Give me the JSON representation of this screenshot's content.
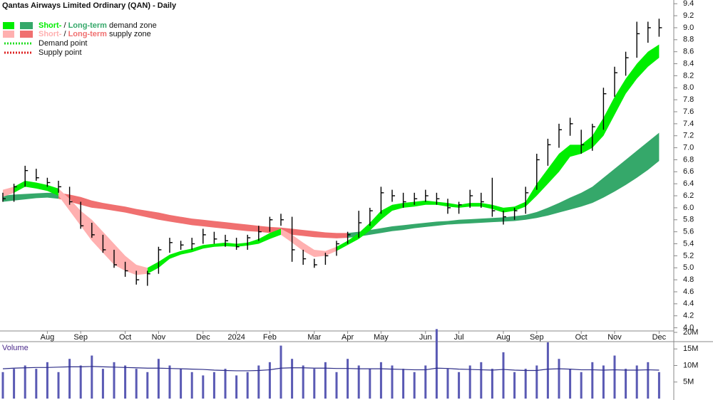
{
  "chart_data": {
    "type": "candlestick",
    "title": "Qantas Airways Limited Ordinary (QAN) - Daily",
    "categories": [
      null,
      null,
      null,
      null,
      "Aug",
      null,
      null,
      "Sep",
      null,
      null,
      null,
      "Oct",
      null,
      null,
      "Nov",
      null,
      null,
      null,
      "Dec",
      null,
      null,
      "2024",
      null,
      null,
      "Feb",
      null,
      null,
      null,
      "Mar",
      null,
      null,
      "Apr",
      null,
      null,
      "May",
      null,
      null,
      null,
      "Jun",
      null,
      null,
      "Jul",
      null,
      null,
      null,
      "Aug",
      null,
      null,
      "Sep",
      null,
      null,
      null,
      "Oct",
      null,
      null,
      "Nov",
      null,
      null,
      null,
      "Dec"
    ],
    "high": [
      6.25,
      6.4,
      6.7,
      6.65,
      6.5,
      6.45,
      6.35,
      6.1,
      5.75,
      5.55,
      5.3,
      5.1,
      4.95,
      4.95,
      5.35,
      5.5,
      5.45,
      5.5,
      5.65,
      5.6,
      5.55,
      5.5,
      5.55,
      5.7,
      5.85,
      5.9,
      5.85,
      5.3,
      5.15,
      5.25,
      5.45,
      5.6,
      5.95,
      6.0,
      6.35,
      6.3,
      6.25,
      6.25,
      6.3,
      6.25,
      6.15,
      6.1,
      6.3,
      6.25,
      6.5,
      5.95,
      6.0,
      6.35,
      6.9,
      7.15,
      7.4,
      7.5,
      7.3,
      7.4,
      8.0,
      8.35,
      8.6,
      9.1,
      9.1,
      9.15
    ],
    "low": [
      6.1,
      6.1,
      6.35,
      6.45,
      6.35,
      6.25,
      6.05,
      5.65,
      5.5,
      5.25,
      5.0,
      4.85,
      4.72,
      4.7,
      4.9,
      5.25,
      5.3,
      5.3,
      5.4,
      5.4,
      5.35,
      5.3,
      5.3,
      5.45,
      5.6,
      5.7,
      5.1,
      5.05,
      5.0,
      5.05,
      5.2,
      5.4,
      5.5,
      5.7,
      5.9,
      6.1,
      6.0,
      6.05,
      6.1,
      6.05,
      5.9,
      5.9,
      6.0,
      6.0,
      5.85,
      5.72,
      5.8,
      5.9,
      6.3,
      6.7,
      7.0,
      7.2,
      6.9,
      6.95,
      7.3,
      7.85,
      8.2,
      8.5,
      8.75,
      8.85
    ],
    "close": [
      6.15,
      6.35,
      6.62,
      6.5,
      6.42,
      6.35,
      6.1,
      5.7,
      5.55,
      5.3,
      5.05,
      4.95,
      4.8,
      4.9,
      5.3,
      5.42,
      5.38,
      5.4,
      5.55,
      5.48,
      5.45,
      5.35,
      5.5,
      5.6,
      5.8,
      5.8,
      5.3,
      5.15,
      5.05,
      5.2,
      5.4,
      5.55,
      5.75,
      5.95,
      6.25,
      6.2,
      6.1,
      6.15,
      6.2,
      6.15,
      6.0,
      6.05,
      6.2,
      6.1,
      5.95,
      5.85,
      5.95,
      6.25,
      6.8,
      7.05,
      7.3,
      7.4,
      7.05,
      7.35,
      7.9,
      8.25,
      8.5,
      8.9,
      9.0,
      9.0
    ],
    "color": "#000000",
    "zones": [
      {
        "name": "Short-term demand zone",
        "color": "#00ee00",
        "upper": [
          null,
          6.35,
          6.45,
          6.42,
          6.38,
          6.32,
          null,
          null,
          null,
          null,
          null,
          null,
          null,
          5.0,
          5.1,
          5.22,
          5.28,
          5.32,
          5.38,
          5.4,
          5.42,
          5.4,
          5.42,
          5.48,
          5.58,
          5.65,
          null,
          null,
          null,
          null,
          5.35,
          5.45,
          5.58,
          5.75,
          5.95,
          6.05,
          6.08,
          6.1,
          6.12,
          6.1,
          6.08,
          6.05,
          6.08,
          6.08,
          6.05,
          6.0,
          6.02,
          6.1,
          6.4,
          6.65,
          6.9,
          7.05,
          7.05,
          7.2,
          7.5,
          7.85,
          8.15,
          8.4,
          8.6,
          8.72
        ],
        "lower": [
          null,
          6.25,
          6.35,
          6.32,
          6.28,
          6.2,
          null,
          null,
          null,
          null,
          null,
          null,
          null,
          4.9,
          5.0,
          5.15,
          5.22,
          5.26,
          5.32,
          5.35,
          5.36,
          5.35,
          5.37,
          5.4,
          5.48,
          5.55,
          null,
          null,
          null,
          null,
          5.28,
          5.38,
          5.48,
          5.62,
          5.8,
          5.95,
          6.0,
          6.02,
          6.05,
          6.05,
          6.02,
          6.0,
          6.02,
          6.02,
          5.98,
          5.92,
          5.95,
          6.02,
          6.2,
          6.4,
          6.6,
          6.85,
          6.9,
          7.0,
          7.2,
          7.55,
          7.9,
          8.15,
          8.35,
          8.5
        ]
      },
      {
        "name": "Short-term supply zone",
        "color": "#ffb0b0",
        "upper": [
          6.3,
          6.35,
          null,
          null,
          null,
          6.32,
          6.15,
          5.95,
          5.8,
          5.6,
          5.4,
          5.2,
          5.05,
          5.0,
          null,
          null,
          null,
          null,
          null,
          null,
          null,
          null,
          null,
          null,
          null,
          5.65,
          5.55,
          5.42,
          5.3,
          5.28,
          5.35,
          null,
          null,
          null,
          null,
          null,
          null,
          null,
          null,
          null,
          null,
          null,
          null,
          null,
          null,
          null,
          null,
          null,
          null,
          null,
          null,
          null,
          null,
          null,
          null,
          null,
          null,
          null,
          null,
          null
        ],
        "lower": [
          6.18,
          6.25,
          null,
          null,
          null,
          6.2,
          5.95,
          5.7,
          5.45,
          5.25,
          5.05,
          4.95,
          4.88,
          4.9,
          null,
          null,
          null,
          null,
          null,
          null,
          null,
          null,
          null,
          null,
          null,
          5.55,
          5.42,
          5.28,
          5.18,
          5.2,
          5.28,
          null,
          null,
          null,
          null,
          null,
          null,
          null,
          null,
          null,
          null,
          null,
          null,
          null,
          null,
          null,
          null,
          null,
          null,
          null,
          null,
          null,
          null,
          null,
          null,
          null,
          null,
          null,
          null,
          null
        ]
      },
      {
        "name": "Long-term demand zone",
        "color": "#35a86a",
        "upper": [
          6.2,
          6.22,
          6.23,
          6.24,
          6.25,
          6.25,
          null,
          null,
          null,
          null,
          null,
          null,
          null,
          null,
          null,
          null,
          null,
          null,
          null,
          null,
          null,
          null,
          null,
          null,
          null,
          null,
          null,
          null,
          null,
          null,
          null,
          5.58,
          5.6,
          5.63,
          5.66,
          5.69,
          5.71,
          5.73,
          5.75,
          5.77,
          5.78,
          5.8,
          5.81,
          5.82,
          5.83,
          5.84,
          5.86,
          5.88,
          5.93,
          6.0,
          6.08,
          6.17,
          6.25,
          6.35,
          6.5,
          6.65,
          6.8,
          6.95,
          7.1,
          7.25
        ],
        "lower": [
          6.1,
          6.12,
          6.14,
          6.16,
          6.17,
          6.15,
          null,
          null,
          null,
          null,
          null,
          null,
          null,
          null,
          null,
          null,
          null,
          null,
          null,
          null,
          null,
          null,
          null,
          null,
          null,
          null,
          null,
          null,
          null,
          null,
          null,
          5.5,
          5.52,
          5.55,
          5.58,
          5.61,
          5.63,
          5.66,
          5.68,
          5.7,
          5.72,
          5.73,
          5.74,
          5.75,
          5.76,
          5.77,
          5.78,
          5.8,
          5.83,
          5.87,
          5.92,
          5.97,
          6.02,
          6.08,
          6.17,
          6.27,
          6.38,
          6.5,
          6.63,
          6.78
        ]
      },
      {
        "name": "Long-term supply zone",
        "color": "#f07070",
        "upper": [
          null,
          null,
          null,
          null,
          null,
          6.25,
          6.22,
          6.18,
          6.12,
          6.08,
          6.05,
          6.02,
          5.98,
          5.95,
          5.92,
          5.88,
          5.85,
          5.82,
          5.8,
          5.78,
          5.76,
          5.74,
          5.72,
          5.7,
          5.68,
          5.67,
          5.65,
          5.63,
          5.61,
          5.59,
          5.58,
          5.58,
          null,
          null,
          null,
          null,
          null,
          null,
          null,
          null,
          null,
          null,
          null,
          null,
          null,
          null,
          null,
          null,
          null,
          null,
          null,
          null,
          null,
          null,
          null,
          null,
          null,
          null,
          null,
          null
        ],
        "lower": [
          null,
          null,
          null,
          null,
          null,
          6.15,
          6.1,
          6.05,
          6.0,
          5.98,
          5.95,
          5.92,
          5.88,
          5.84,
          5.8,
          5.77,
          5.74,
          5.71,
          5.69,
          5.67,
          5.65,
          5.63,
          5.61,
          5.6,
          5.58,
          5.57,
          5.55,
          5.53,
          5.51,
          5.5,
          5.49,
          5.5,
          null,
          null,
          null,
          null,
          null,
          null,
          null,
          null,
          null,
          null,
          null,
          null,
          null,
          null,
          null,
          null,
          null,
          null,
          null,
          null,
          null,
          null,
          null,
          null,
          null,
          null,
          null,
          null
        ]
      }
    ],
    "legend": {
      "zone_entries": [
        {
          "short": "Short-",
          "separator": "/",
          "long": "Long-term",
          "rest": "demand zone"
        },
        {
          "short": "Short-",
          "separator": "/",
          "long": "Long-term",
          "rest": "supply zone"
        }
      ],
      "points": [
        {
          "name": "Demand point",
          "color": "#22dd22"
        },
        {
          "name": "Supply point",
          "color": "#dd2222"
        }
      ]
    },
    "ylim": [
      3.9,
      9.45
    ],
    "yticks": [
      {
        "value": 4,
        "label": "4.0"
      },
      4.2,
      4.4,
      4.6,
      4.8,
      {
        "value": 5,
        "label": "5.0"
      },
      5.2,
      5.4,
      5.6,
      5.8,
      {
        "value": 6,
        "label": "6.0"
      },
      6.2,
      6.4,
      6.6,
      6.8,
      {
        "value": 7,
        "label": "7.0"
      },
      7.2,
      7.4,
      7.6,
      7.8,
      {
        "value": 8,
        "label": "8.0"
      },
      8.2,
      8.4,
      8.6,
      8.8,
      {
        "value": 9,
        "label": "9.0"
      },
      9.2,
      9.4
    ],
    "volume": {
      "title": "Volume",
      "color": "#5a5ab4",
      "average_color": "#2e2e88",
      "values": [
        8000000,
        9000000,
        10000000,
        9000000,
        11000000,
        8000000,
        12000000,
        10000000,
        13000000,
        9000000,
        11000000,
        10000000,
        9000000,
        8000000,
        12000000,
        10000000,
        9000000,
        8000000,
        7000000,
        8000000,
        9000000,
        7000000,
        8000000,
        10000000,
        11000000,
        16000000,
        12000000,
        10000000,
        9000000,
        11000000,
        8000000,
        12000000,
        10000000,
        9000000,
        11000000,
        10000000,
        9000000,
        8000000,
        10000000,
        21000000,
        9000000,
        8000000,
        10000000,
        11000000,
        9000000,
        14000000,
        8000000,
        9000000,
        10000000,
        17000000,
        12000000,
        9000000,
        8000000,
        11000000,
        10000000,
        13000000,
        9000000,
        10000000,
        11000000,
        8000000
      ],
      "average": [
        9000000,
        9200000,
        9300000,
        9400000,
        9400000,
        9500000,
        9600000,
        9600000,
        9700000,
        9600000,
        9500000,
        9400000,
        9300000,
        9200000,
        9200000,
        9100000,
        9000000,
        8900000,
        8800000,
        8600000,
        8500000,
        8400000,
        8400000,
        8500000,
        8700000,
        9200000,
        9300000,
        9300000,
        9200000,
        9200000,
        9100000,
        9100000,
        9000000,
        9000000,
        9000000,
        8900000,
        8800000,
        8700000,
        8700000,
        9200000,
        9100000,
        8900000,
        8800000,
        8700000,
        8600000,
        8800000,
        8600000,
        8500000,
        8500000,
        8900000,
        9000000,
        8900000,
        8700000,
        8700000,
        8600000,
        8700000,
        8600000,
        8600000,
        8700000,
        8600000
      ],
      "ylim": [
        0,
        20000000
      ],
      "yticks": [
        {
          "value": 5000000,
          "label": "5M"
        },
        {
          "value": 10000000,
          "label": "10M"
        },
        {
          "value": 15000000,
          "label": "15M"
        },
        {
          "value": 20000000,
          "label": "20M"
        }
      ]
    }
  }
}
